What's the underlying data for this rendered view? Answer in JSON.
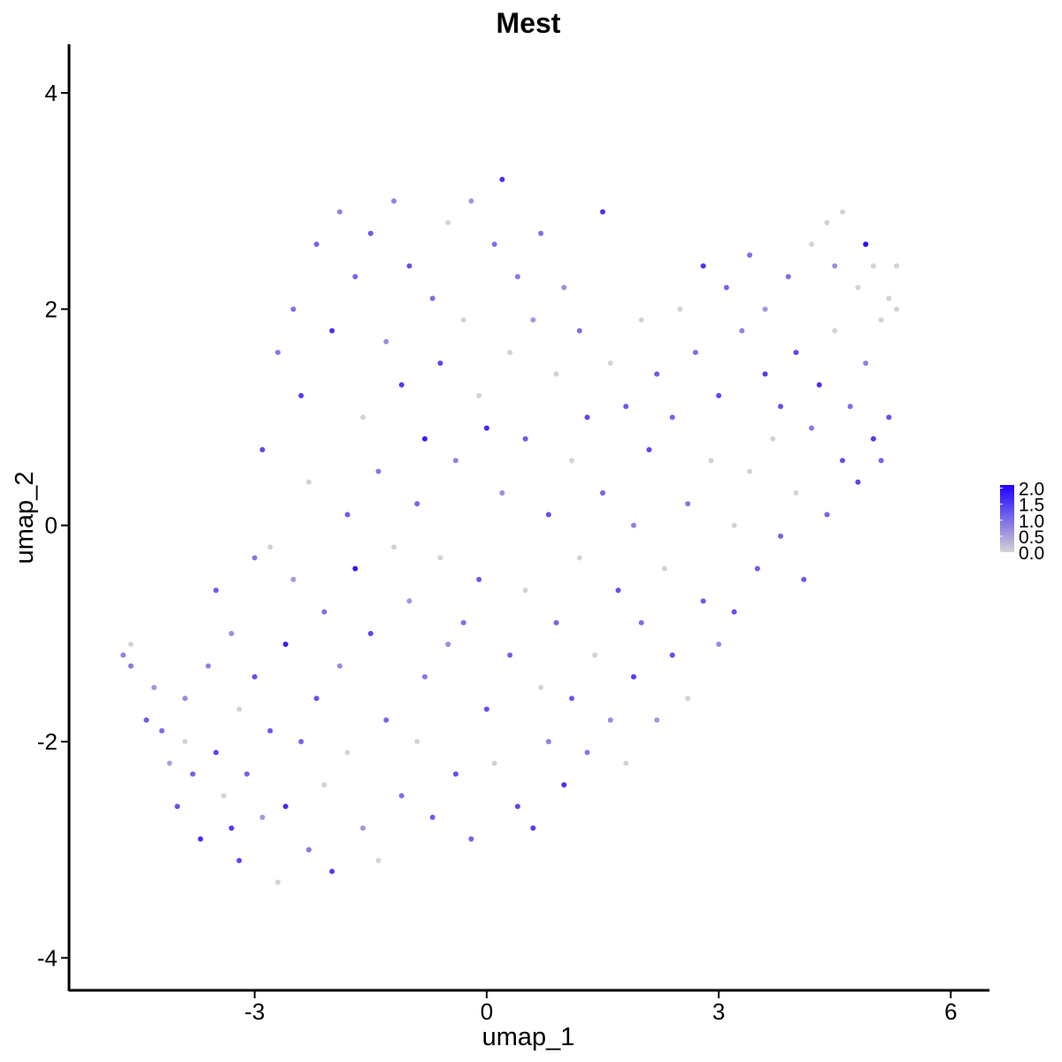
{
  "chart_data": {
    "type": "scatter",
    "title": "Mest",
    "xlabel": "umap_1",
    "ylabel": "umap_2",
    "xlim": [
      -5.4,
      6.5
    ],
    "ylim": [
      -4.3,
      4.45
    ],
    "xticks": [
      -3,
      0,
      3,
      6
    ],
    "xtick_labels": [
      "-3",
      "0",
      "3",
      "6"
    ],
    "yticks": [
      -4,
      -2,
      0,
      2,
      4
    ],
    "ytick_labels": [
      "-4",
      "-2",
      "0",
      "2",
      "4"
    ],
    "grid": false,
    "color_scale": {
      "low_color": "#d3d3d3",
      "high_color": "#1f00ff",
      "min": 0.0,
      "max": 2.1,
      "ticks": [
        0.0,
        0.5,
        1.0,
        1.5,
        2.0
      ],
      "tick_labels": [
        "0.0",
        "0.5",
        "1.0",
        "1.5",
        "2.0"
      ]
    },
    "legend_position": "right",
    "points": [
      [
        -4.7,
        -1.2,
        0.8
      ],
      [
        -4.6,
        -1.3,
        0.9
      ],
      [
        -4.6,
        -1.1,
        0.0
      ],
      [
        -4.4,
        -1.8,
        1.2
      ],
      [
        -4.3,
        -1.5,
        0.6
      ],
      [
        -4.2,
        -1.9,
        1.0
      ],
      [
        -4.1,
        -2.2,
        0.5
      ],
      [
        -4.0,
        -2.6,
        1.3
      ],
      [
        -3.9,
        -1.6,
        0.7
      ],
      [
        -3.9,
        -2.0,
        0.0
      ],
      [
        -3.8,
        -2.3,
        1.1
      ],
      [
        -3.7,
        -2.9,
        1.6
      ],
      [
        -3.6,
        -1.3,
        0.8
      ],
      [
        -3.5,
        -2.1,
        1.4
      ],
      [
        -3.5,
        -0.6,
        1.2
      ],
      [
        -3.4,
        -2.5,
        0.0
      ],
      [
        -3.3,
        -2.8,
        1.5
      ],
      [
        -3.3,
        -1.0,
        0.7
      ],
      [
        -3.2,
        -3.1,
        1.4
      ],
      [
        -3.2,
        -1.7,
        0.0
      ],
      [
        -3.1,
        -2.3,
        1.1
      ],
      [
        -3.0,
        -0.3,
        0.9
      ],
      [
        -3.0,
        -1.4,
        1.3
      ],
      [
        -2.9,
        -2.7,
        0.6
      ],
      [
        -2.9,
        0.7,
        1.4
      ],
      [
        -2.8,
        -0.2,
        0.0
      ],
      [
        -2.8,
        -1.9,
        1.2
      ],
      [
        -2.7,
        1.6,
        0.9
      ],
      [
        -2.7,
        -3.3,
        0.0
      ],
      [
        -2.6,
        -2.6,
        1.7
      ],
      [
        -2.6,
        -1.1,
        1.8
      ],
      [
        -2.5,
        2.0,
        1.0
      ],
      [
        -2.5,
        -0.5,
        0.6
      ],
      [
        -2.4,
        -2.0,
        1.1
      ],
      [
        -2.4,
        1.2,
        1.5
      ],
      [
        -2.3,
        -3.0,
        0.9
      ],
      [
        -2.3,
        0.4,
        0.0
      ],
      [
        -2.2,
        -1.6,
        1.3
      ],
      [
        -2.2,
        2.6,
        1.1
      ],
      [
        -2.1,
        -2.4,
        0.0
      ],
      [
        -2.1,
        -0.8,
        1.0
      ],
      [
        -2.0,
        1.8,
        1.6
      ],
      [
        -2.0,
        -3.2,
        1.5
      ],
      [
        -1.9,
        -1.3,
        0.7
      ],
      [
        -1.9,
        2.9,
        0.8
      ],
      [
        -1.8,
        0.1,
        1.2
      ],
      [
        -1.8,
        -2.1,
        0.0
      ],
      [
        -1.7,
        -0.4,
        1.9
      ],
      [
        -1.7,
        2.3,
        1.1
      ],
      [
        -1.6,
        -2.8,
        0.6
      ],
      [
        -1.6,
        1.0,
        0.0
      ],
      [
        -1.5,
        -1.0,
        1.4
      ],
      [
        -1.5,
        2.7,
        1.2
      ],
      [
        -1.4,
        -3.1,
        0.0
      ],
      [
        -1.4,
        0.5,
        0.9
      ],
      [
        -1.3,
        -1.8,
        1.1
      ],
      [
        -1.3,
        1.7,
        0.7
      ],
      [
        -1.2,
        -0.2,
        0.0
      ],
      [
        -1.2,
        3.0,
        0.8
      ],
      [
        -1.1,
        -2.5,
        1.0
      ],
      [
        -1.1,
        1.3,
        1.5
      ],
      [
        -1.0,
        -0.7,
        0.6
      ],
      [
        -1.0,
        2.4,
        1.3
      ],
      [
        -0.9,
        -2.0,
        0.0
      ],
      [
        -0.9,
        0.2,
        1.1
      ],
      [
        -0.8,
        -1.4,
        0.9
      ],
      [
        -0.8,
        0.8,
        1.8
      ],
      [
        -0.7,
        2.1,
        1.0
      ],
      [
        -0.7,
        -2.7,
        1.2
      ],
      [
        -0.6,
        -0.3,
        0.0
      ],
      [
        -0.6,
        1.5,
        1.4
      ],
      [
        -0.5,
        -1.1,
        0.7
      ],
      [
        -0.5,
        2.8,
        0.0
      ],
      [
        -0.4,
        -2.3,
        1.3
      ],
      [
        -0.4,
        0.6,
        0.8
      ],
      [
        -0.3,
        -0.9,
        1.0
      ],
      [
        -0.3,
        1.9,
        0.0
      ],
      [
        -0.2,
        -2.9,
        1.1
      ],
      [
        -0.2,
        3.0,
        0.6
      ],
      [
        -0.1,
        -0.5,
        1.2
      ],
      [
        -0.1,
        1.2,
        0.0
      ],
      [
        0.0,
        -1.7,
        1.3
      ],
      [
        0.0,
        0.9,
        1.7
      ],
      [
        0.1,
        2.6,
        1.0
      ],
      [
        0.1,
        -2.2,
        0.0
      ],
      [
        0.2,
        3.2,
        1.6
      ],
      [
        0.2,
        0.3,
        0.7
      ],
      [
        0.3,
        -1.2,
        1.1
      ],
      [
        0.3,
        1.6,
        0.0
      ],
      [
        0.4,
        -2.6,
        1.4
      ],
      [
        0.4,
        2.3,
        0.9
      ],
      [
        0.5,
        -0.6,
        0.0
      ],
      [
        0.5,
        0.8,
        1.2
      ],
      [
        0.6,
        -2.8,
        1.5
      ],
      [
        0.6,
        1.9,
        0.6
      ],
      [
        0.7,
        -1.5,
        0.0
      ],
      [
        0.7,
        2.7,
        1.0
      ],
      [
        0.8,
        0.1,
        1.3
      ],
      [
        0.8,
        -2.0,
        0.8
      ],
      [
        0.9,
        1.4,
        0.0
      ],
      [
        0.9,
        -0.9,
        1.1
      ],
      [
        1.0,
        2.2,
        0.7
      ],
      [
        1.0,
        -2.4,
        1.6
      ],
      [
        1.1,
        0.6,
        0.0
      ],
      [
        1.1,
        -1.6,
        1.2
      ],
      [
        1.2,
        1.8,
        1.0
      ],
      [
        1.2,
        -0.3,
        0.0
      ],
      [
        1.3,
        -2.1,
        0.9
      ],
      [
        1.3,
        1.0,
        1.4
      ],
      [
        1.4,
        -1.2,
        0.0
      ],
      [
        1.5,
        0.3,
        1.1
      ],
      [
        1.5,
        2.9,
        1.6
      ],
      [
        1.6,
        -1.8,
        0.7
      ],
      [
        1.6,
        1.5,
        0.0
      ],
      [
        1.7,
        -0.6,
        1.3
      ],
      [
        1.8,
        -2.2,
        0.0
      ],
      [
        1.8,
        1.1,
        1.2
      ],
      [
        1.9,
        0.0,
        0.8
      ],
      [
        1.9,
        -1.4,
        1.5
      ],
      [
        2.0,
        1.9,
        0.0
      ],
      [
        2.0,
        -0.9,
        1.0
      ],
      [
        2.1,
        0.7,
        1.4
      ],
      [
        2.2,
        -1.8,
        0.6
      ],
      [
        2.2,
        1.4,
        1.2
      ],
      [
        2.3,
        -0.4,
        0.0
      ],
      [
        2.4,
        1.0,
        1.1
      ],
      [
        2.4,
        -1.2,
        1.3
      ],
      [
        2.5,
        2.0,
        0.0
      ],
      [
        2.6,
        0.2,
        0.9
      ],
      [
        2.6,
        -1.6,
        0.0
      ],
      [
        2.7,
        1.6,
        1.0
      ],
      [
        2.8,
        2.4,
        1.6
      ],
      [
        2.8,
        -0.7,
        1.2
      ],
      [
        2.9,
        0.6,
        0.0
      ],
      [
        3.0,
        1.2,
        1.4
      ],
      [
        3.0,
        -1.1,
        0.7
      ],
      [
        3.1,
        2.2,
        1.1
      ],
      [
        3.2,
        0.0,
        0.0
      ],
      [
        3.2,
        -0.8,
        1.3
      ],
      [
        3.3,
        1.8,
        0.8
      ],
      [
        3.4,
        2.5,
        1.0
      ],
      [
        3.4,
        0.5,
        0.0
      ],
      [
        3.5,
        -0.4,
        1.2
      ],
      [
        3.6,
        1.4,
        1.5
      ],
      [
        3.6,
        2.0,
        0.6
      ],
      [
        3.7,
        0.8,
        0.0
      ],
      [
        3.8,
        -0.1,
        1.1
      ],
      [
        3.8,
        1.1,
        1.3
      ],
      [
        3.9,
        2.3,
        1.0
      ],
      [
        4.0,
        0.3,
        0.0
      ],
      [
        4.0,
        1.6,
        1.4
      ],
      [
        4.1,
        -0.5,
        1.2
      ],
      [
        4.2,
        2.6,
        0.0
      ],
      [
        4.2,
        0.9,
        0.9
      ],
      [
        4.3,
        1.3,
        1.6
      ],
      [
        4.4,
        2.8,
        0.0
      ],
      [
        4.4,
        0.1,
        1.1
      ],
      [
        4.5,
        2.4,
        0.7
      ],
      [
        4.5,
        1.8,
        0.0
      ],
      [
        4.6,
        0.6,
        1.3
      ],
      [
        4.6,
        2.9,
        0.0
      ],
      [
        4.7,
        1.1,
        1.0
      ],
      [
        4.8,
        2.2,
        0.0
      ],
      [
        4.8,
        0.4,
        1.4
      ],
      [
        4.9,
        2.6,
        2.0
      ],
      [
        4.9,
        1.5,
        0.8
      ],
      [
        5.0,
        0.8,
        1.5
      ],
      [
        5.0,
        2.4,
        0.0
      ],
      [
        5.1,
        1.9,
        0.0
      ],
      [
        5.1,
        0.6,
        1.1
      ],
      [
        5.2,
        2.1,
        0.0
      ],
      [
        5.2,
        1.0,
        1.3
      ],
      [
        5.3,
        2.4,
        0.0
      ],
      [
        5.3,
        2.0,
        0.0
      ]
    ]
  }
}
